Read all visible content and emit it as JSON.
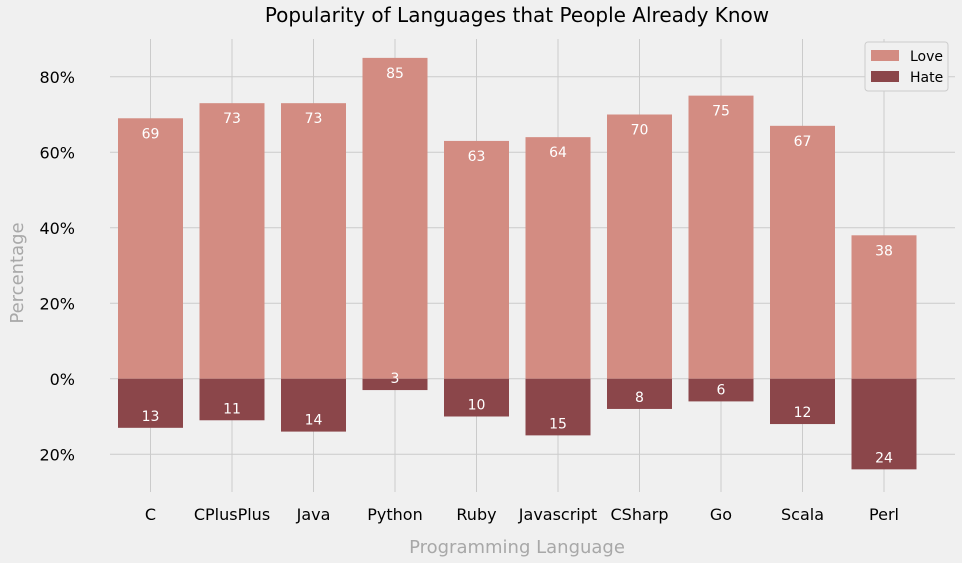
{
  "chart_data": {
    "type": "bar",
    "title": "Popularity of Languages that People Already Know",
    "xlabel": "Programming Language",
    "ylabel": "Percentage",
    "categories": [
      "C",
      "CPlusPlus",
      "Java",
      "Python",
      "Ruby",
      "Javascript",
      "CSharp",
      "Go",
      "Scala",
      "Perl"
    ],
    "series": [
      {
        "name": "Love",
        "values": [
          69,
          73,
          73,
          85,
          63,
          64,
          70,
          75,
          67,
          38
        ],
        "color": "#d38c82"
      },
      {
        "name": "Hate",
        "values": [
          13,
          11,
          14,
          3,
          10,
          15,
          8,
          6,
          12,
          24
        ],
        "color": "#8b464a",
        "direction": "below-zero"
      }
    ],
    "data_labels": {
      "love": [
        "69",
        "73",
        "73",
        "85",
        "63",
        "64",
        "70",
        "75",
        "67",
        "38"
      ],
      "hate": [
        "13",
        "11",
        "14",
        "3",
        "10",
        "15",
        "8",
        "6",
        "12",
        "24"
      ]
    },
    "ylim": [
      -30,
      90
    ],
    "yticks": [
      -20,
      0,
      20,
      40,
      60,
      80
    ],
    "ytick_labels": [
      "20%",
      "0%",
      "20%",
      "40%",
      "60%",
      "80%"
    ],
    "grid": true,
    "legend": {
      "position": "top-right",
      "entries": [
        "Love",
        "Hate"
      ]
    },
    "colors": {
      "background": "#f0f0f0",
      "grid": "#cbcbcb",
      "axis_label": "#a8a8a8"
    }
  }
}
